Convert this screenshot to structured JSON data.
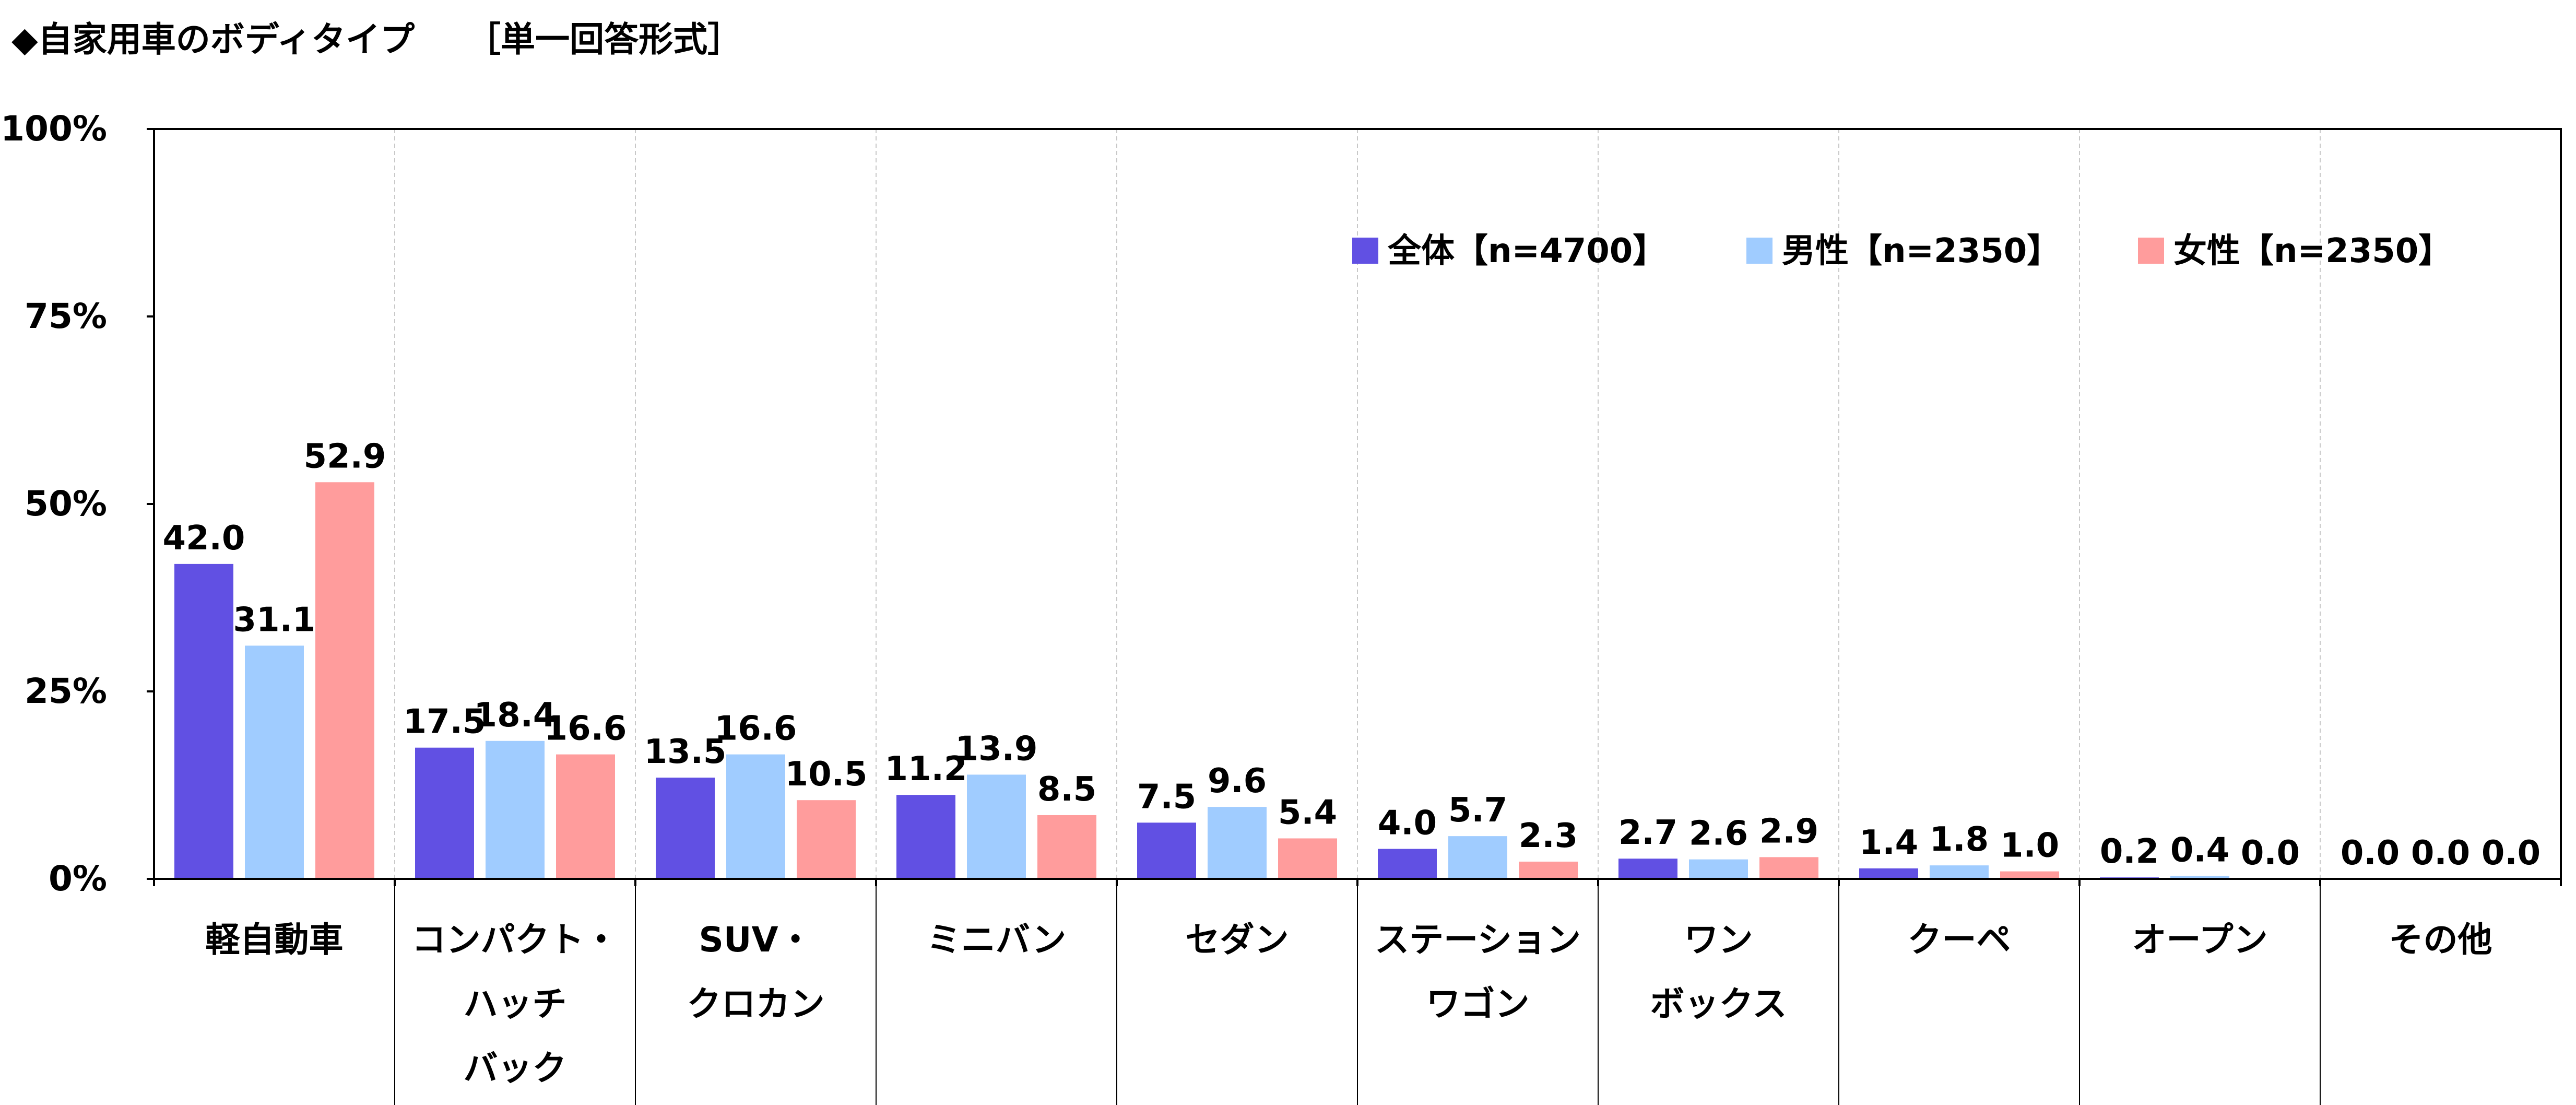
{
  "header": {
    "title": "◆自家用車のボディタイプ　　［単一回答形式］"
  },
  "colors": {
    "all": "#6150E3",
    "male": "#A0CCFF",
    "female": "#FF9C9C",
    "axis": "#000000",
    "grid": "#c8c8c8"
  },
  "chart_data": {
    "type": "bar",
    "title": "◆自家用車のボディタイプ　　［単一回答形式］",
    "xlabel": "",
    "ylabel": "",
    "ylim": [
      0,
      100
    ],
    "y_ticks": [
      "0%",
      "25%",
      "50%",
      "75%",
      "100%"
    ],
    "y_tick_values": [
      0,
      25,
      50,
      75,
      100
    ],
    "legend_position": "top-right",
    "categories": [
      [
        "軽自動車"
      ],
      [
        "コンパクト・",
        "ハッチ",
        "バック"
      ],
      [
        "SUV・",
        "クロカン"
      ],
      [
        "ミニバン"
      ],
      [
        "セダン"
      ],
      [
        "ステーション",
        "ワゴン"
      ],
      [
        "ワン",
        "ボックス"
      ],
      [
        "クーペ"
      ],
      [
        "オープン"
      ],
      [
        "その他"
      ]
    ],
    "series": [
      {
        "name": "全体【n=4700】",
        "color": "#6150E3",
        "values": [
          42.0,
          17.5,
          13.5,
          11.2,
          7.5,
          4.0,
          2.7,
          1.4,
          0.2,
          0.0
        ],
        "labels": [
          "42.0",
          "17.5",
          "13.5",
          "11.2",
          "7.5",
          "4.0",
          "2.7",
          "1.4",
          "0.2",
          "0.0"
        ]
      },
      {
        "name": "男性【n=2350】",
        "color": "#A0CCFF",
        "values": [
          31.1,
          18.4,
          16.6,
          13.9,
          9.6,
          5.7,
          2.6,
          1.8,
          0.4,
          0.0
        ],
        "labels": [
          "31.1",
          "18.4",
          "16.6",
          "13.9",
          "9.6",
          "5.7",
          "2.6",
          "1.8",
          "0.4",
          "0.0"
        ]
      },
      {
        "name": "女性【n=2350】",
        "color": "#FF9C9C",
        "values": [
          52.9,
          16.6,
          10.5,
          8.5,
          5.4,
          2.3,
          2.9,
          1.0,
          0.0,
          0.0
        ],
        "labels": [
          "52.9",
          "16.6",
          "10.5",
          "8.5",
          "5.4",
          "2.3",
          "2.9",
          "1.0",
          "0.0",
          "0.0"
        ]
      }
    ]
  }
}
